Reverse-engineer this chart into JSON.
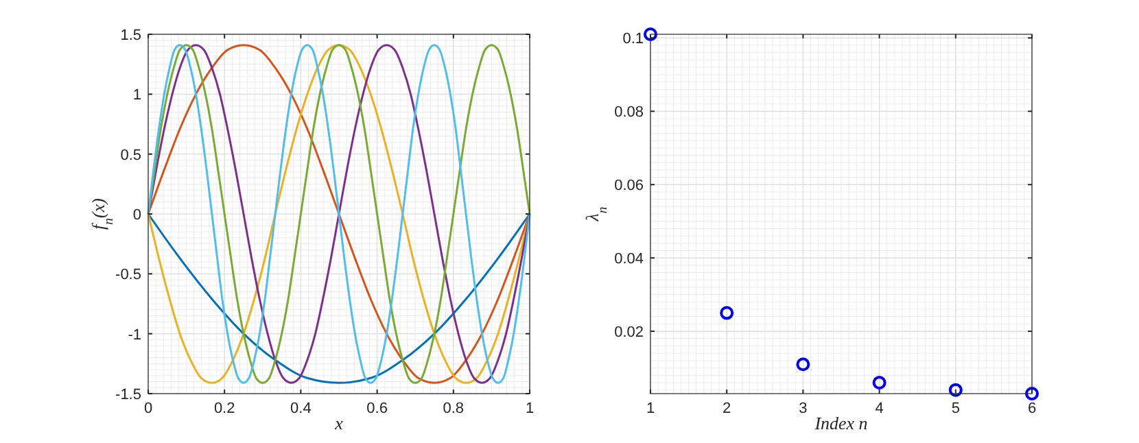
{
  "chart_data": [
    {
      "type": "line",
      "xlabel": "x",
      "ylabel": "f$_{n}$(x)",
      "xlim": [
        0,
        1
      ],
      "ylim": [
        -1.5,
        1.5
      ],
      "xticks": [
        0,
        0.2,
        0.4,
        0.6,
        0.8,
        1
      ],
      "yticks": [
        -1.5,
        -1,
        -0.5,
        0,
        0.5,
        1,
        1.5
      ],
      "grid": true,
      "line_style": "solid",
      "series": [
        {
          "color": "#0072bd",
          "x": [
            0,
            0.083,
            0.167,
            0.25,
            0.333,
            0.417,
            0.5,
            0.583,
            0.667,
            0.75,
            0.833,
            0.917,
            1
          ],
          "values": [
            0,
            -0.37,
            -0.71,
            -1,
            -1.22,
            -1.37,
            -1.41,
            -1.37,
            -1.22,
            -1,
            -0.71,
            -0.37,
            0
          ]
        },
        {
          "color": "#d95319",
          "x": [
            0,
            0.042,
            0.083,
            0.125,
            0.167,
            0.208,
            0.25,
            0.292,
            0.333,
            0.375,
            0.417,
            0.458,
            0.5,
            0.542,
            0.583,
            0.625,
            0.667,
            0.708,
            0.75,
            0.792,
            0.833,
            0.875,
            0.917,
            0.958,
            1
          ],
          "values": [
            0,
            0.37,
            0.71,
            1,
            1.22,
            1.37,
            1.41,
            1.37,
            1.22,
            1,
            0.71,
            0.37,
            0,
            -0.37,
            -0.71,
            -1,
            -1.22,
            -1.37,
            -1.41,
            -1.37,
            -1.22,
            -1,
            -0.71,
            -0.37,
            0
          ]
        },
        {
          "color": "#edb120",
          "x": [
            0,
            0.028,
            0.056,
            0.083,
            0.111,
            0.139,
            0.167,
            0.194,
            0.222,
            0.25,
            0.278,
            0.306,
            0.333,
            0.361,
            0.389,
            0.417,
            0.444,
            0.472,
            0.5,
            0.528,
            0.556,
            0.583,
            0.611,
            0.639,
            0.667,
            0.694,
            0.722,
            0.75,
            0.778,
            0.806,
            0.833,
            0.861,
            0.889,
            0.917,
            0.944,
            0.972,
            1
          ],
          "values": [
            0,
            -0.37,
            -0.71,
            -1,
            -1.22,
            -1.37,
            -1.41,
            -1.37,
            -1.22,
            -1,
            -0.71,
            -0.37,
            0,
            0.37,
            0.71,
            1,
            1.22,
            1.37,
            1.41,
            1.37,
            1.22,
            1,
            0.71,
            0.37,
            0,
            -0.37,
            -0.71,
            -1,
            -1.22,
            -1.37,
            -1.41,
            -1.37,
            -1.22,
            -1,
            -0.71,
            -0.37,
            0
          ]
        },
        {
          "color": "#7e2f8e",
          "x": [
            0,
            0.021,
            0.042,
            0.063,
            0.083,
            0.104,
            0.125,
            0.146,
            0.167,
            0.188,
            0.208,
            0.229,
            0.25,
            0.271,
            0.292,
            0.313,
            0.333,
            0.354,
            0.375,
            0.396,
            0.417,
            0.438,
            0.458,
            0.479,
            0.5,
            0.521,
            0.542,
            0.563,
            0.583,
            0.604,
            0.625,
            0.646,
            0.667,
            0.688,
            0.708,
            0.729,
            0.75,
            0.771,
            0.792,
            0.813,
            0.833,
            0.854,
            0.875,
            0.896,
            0.917,
            0.938,
            0.958,
            0.979,
            1
          ],
          "values": [
            0,
            0.37,
            0.71,
            1,
            1.22,
            1.37,
            1.41,
            1.37,
            1.22,
            1,
            0.71,
            0.37,
            0,
            -0.37,
            -0.71,
            -1,
            -1.22,
            -1.37,
            -1.41,
            -1.37,
            -1.22,
            -1,
            -0.71,
            -0.37,
            0,
            0.37,
            0.71,
            1,
            1.22,
            1.37,
            1.41,
            1.37,
            1.22,
            1,
            0.71,
            0.37,
            0,
            -0.37,
            -0.71,
            -1,
            -1.22,
            -1.37,
            -1.41,
            -1.37,
            -1.22,
            -1,
            -0.71,
            -0.37,
            0
          ]
        },
        {
          "color": "#77ac30",
          "x": [
            0,
            0.017,
            0.033,
            0.05,
            0.067,
            0.083,
            0.1,
            0.117,
            0.133,
            0.15,
            0.167,
            0.183,
            0.2,
            0.217,
            0.233,
            0.25,
            0.267,
            0.283,
            0.3,
            0.317,
            0.333,
            0.35,
            0.367,
            0.383,
            0.4,
            0.417,
            0.433,
            0.45,
            0.467,
            0.483,
            0.5,
            0.517,
            0.533,
            0.55,
            0.567,
            0.583,
            0.6,
            0.617,
            0.633,
            0.65,
            0.667,
            0.683,
            0.7,
            0.717,
            0.733,
            0.75,
            0.767,
            0.783,
            0.8,
            0.817,
            0.833,
            0.85,
            0.867,
            0.883,
            0.9,
            0.917,
            0.933,
            0.95,
            0.967,
            0.983,
            1
          ],
          "values": [
            0,
            0.37,
            0.71,
            1,
            1.22,
            1.37,
            1.41,
            1.37,
            1.22,
            1,
            0.71,
            0.37,
            0,
            -0.37,
            -0.71,
            -1,
            -1.22,
            -1.37,
            -1.41,
            -1.37,
            -1.22,
            -1,
            -0.71,
            -0.37,
            0,
            0.37,
            0.71,
            1,
            1.22,
            1.37,
            1.41,
            1.37,
            1.22,
            1,
            0.71,
            0.37,
            0,
            -0.37,
            -0.71,
            -1,
            -1.22,
            -1.37,
            -1.41,
            -1.37,
            -1.22,
            -1,
            -0.71,
            -0.37,
            0,
            0.37,
            0.71,
            1,
            1.22,
            1.37,
            1.41,
            1.37,
            1.22,
            1,
            0.71,
            0.37,
            0
          ]
        },
        {
          "color": "#4dbeee",
          "x": [
            0,
            0.014,
            0.028,
            0.042,
            0.056,
            0.069,
            0.083,
            0.097,
            0.111,
            0.125,
            0.139,
            0.153,
            0.167,
            0.181,
            0.194,
            0.208,
            0.222,
            0.236,
            0.25,
            0.264,
            0.278,
            0.292,
            0.306,
            0.319,
            0.333,
            0.347,
            0.361,
            0.375,
            0.389,
            0.403,
            0.417,
            0.431,
            0.444,
            0.458,
            0.472,
            0.486,
            0.5,
            0.514,
            0.528,
            0.542,
            0.556,
            0.569,
            0.583,
            0.597,
            0.611,
            0.625,
            0.639,
            0.653,
            0.667,
            0.681,
            0.694,
            0.708,
            0.722,
            0.736,
            0.75,
            0.764,
            0.778,
            0.792,
            0.806,
            0.819,
            0.833,
            0.847,
            0.861,
            0.875,
            0.889,
            0.903,
            0.917,
            0.931,
            0.944,
            0.958,
            0.972,
            0.986,
            1
          ],
          "values": [
            0,
            0.37,
            0.71,
            1,
            1.22,
            1.37,
            1.41,
            1.37,
            1.22,
            1,
            0.71,
            0.37,
            0,
            -0.37,
            -0.71,
            -1,
            -1.22,
            -1.37,
            -1.41,
            -1.37,
            -1.22,
            -1,
            -0.71,
            -0.37,
            0,
            0.37,
            0.71,
            1,
            1.22,
            1.37,
            1.41,
            1.37,
            1.22,
            1,
            0.71,
            0.37,
            0,
            -0.37,
            -0.71,
            -1,
            -1.22,
            -1.37,
            -1.41,
            -1.37,
            -1.22,
            -1,
            -0.71,
            -0.37,
            0,
            0.37,
            0.71,
            1,
            1.22,
            1.37,
            1.41,
            1.37,
            1.22,
            1,
            0.71,
            0.37,
            0,
            -0.37,
            -0.71,
            -1,
            -1.22,
            -1.37,
            -1.41,
            -1.37,
            -1.22,
            -1,
            -0.71,
            -0.37,
            0
          ]
        }
      ]
    },
    {
      "type": "scatter",
      "xlabel": "Index n",
      "ylabel": "λ$_{n}$",
      "xlim": [
        1,
        6
      ],
      "ylim": [
        0.003,
        0.101
      ],
      "xticks": [
        1,
        2,
        3,
        4,
        5,
        6
      ],
      "yticks": [
        0.02,
        0.04,
        0.06,
        0.08,
        0.1
      ],
      "grid": true,
      "marker": "circle",
      "series": [
        {
          "color": "#0000ff",
          "x": [
            1,
            2,
            3,
            4,
            5,
            6
          ],
          "values": [
            0.101,
            0.025,
            0.011,
            0.006,
            0.004,
            0.003
          ]
        }
      ]
    }
  ]
}
